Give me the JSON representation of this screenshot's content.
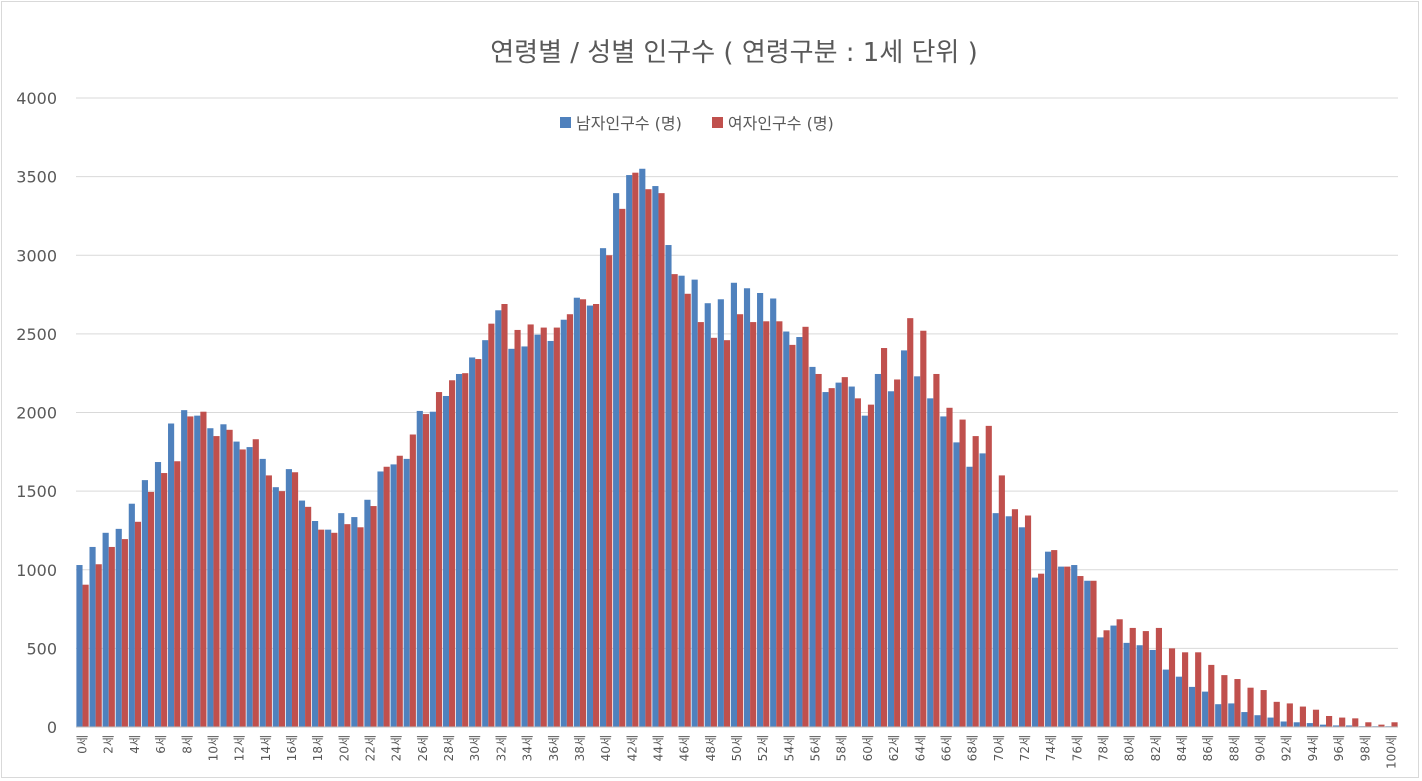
{
  "chart_data": {
    "type": "bar",
    "title": "연령별  / 성별 인구수 ( 연령구분 : 1세 단위 )",
    "xlabel": "",
    "ylabel": "",
    "ylim": [
      0,
      4000
    ],
    "yticks": [
      0,
      500,
      1000,
      1500,
      2000,
      2500,
      3000,
      3500,
      4000
    ],
    "grid": true,
    "legend_position": "top-center",
    "categories": [
      "0세",
      "1세",
      "2세",
      "3세",
      "4세",
      "5세",
      "6세",
      "7세",
      "8세",
      "9세",
      "10세",
      "11세",
      "12세",
      "13세",
      "14세",
      "15세",
      "16세",
      "17세",
      "18세",
      "19세",
      "20세",
      "21세",
      "22세",
      "23세",
      "24세",
      "25세",
      "26세",
      "27세",
      "28세",
      "29세",
      "30세",
      "31세",
      "32세",
      "33세",
      "34세",
      "35세",
      "36세",
      "37세",
      "38세",
      "39세",
      "40세",
      "41세",
      "42세",
      "43세",
      "44세",
      "45세",
      "46세",
      "47세",
      "48세",
      "49세",
      "50세",
      "51세",
      "52세",
      "53세",
      "54세",
      "55세",
      "56세",
      "57세",
      "58세",
      "59세",
      "60세",
      "61세",
      "62세",
      "63세",
      "64세",
      "65세",
      "66세",
      "67세",
      "68세",
      "69세",
      "70세",
      "71세",
      "72세",
      "73세",
      "74세",
      "75세",
      "76세",
      "77세",
      "78세",
      "79세",
      "80세",
      "81세",
      "82세",
      "83세",
      "84세",
      "85세",
      "86세",
      "87세",
      "88세",
      "89세",
      "90세",
      "91세",
      "92세",
      "93세",
      "94세",
      "95세",
      "96세",
      "97세",
      "98세",
      "99세",
      "100세"
    ],
    "xtick_labels": [
      "0세",
      "",
      "2세",
      "",
      "4세",
      "",
      "6세",
      "",
      "8세",
      "",
      "10세",
      "",
      "12세",
      "",
      "14세",
      "",
      "16세",
      "",
      "18세",
      "",
      "20세",
      "",
      "22세",
      "",
      "24세",
      "",
      "26세",
      "",
      "28세",
      "",
      "30세",
      "",
      "32세",
      "",
      "34세",
      "",
      "36세",
      "",
      "38세",
      "",
      "40세",
      "",
      "42세",
      "",
      "44세",
      "",
      "46세",
      "",
      "48세",
      "",
      "50세",
      "",
      "52세",
      "",
      "54세",
      "",
      "56세",
      "",
      "58세",
      "",
      "60세",
      "",
      "62세",
      "",
      "64세",
      "",
      "66세",
      "",
      "68세",
      "",
      "70세",
      "",
      "72세",
      "",
      "74세",
      "",
      "76세",
      "",
      "78세",
      "",
      "80세",
      "",
      "82세",
      "",
      "84세",
      "",
      "86세",
      "",
      "88세",
      "",
      "90세",
      "",
      "92세",
      "",
      "94세",
      "",
      "96세",
      "",
      "98세",
      "",
      "100세"
    ],
    "series": [
      {
        "name": "남자인구수 (명)",
        "color": "#4f81bd",
        "values": [
          1030,
          1145,
          1235,
          1260,
          1420,
          1570,
          1685,
          1930,
          2015,
          1980,
          1900,
          1925,
          1815,
          1780,
          1705,
          1525,
          1640,
          1440,
          1310,
          1255,
          1360,
          1335,
          1445,
          1625,
          1670,
          1705,
          2010,
          2005,
          2105,
          2245,
          2350,
          2460,
          2650,
          2405,
          2420,
          2495,
          2455,
          2590,
          2730,
          2680,
          3045,
          3395,
          3510,
          3550,
          3440,
          3065,
          2870,
          2845,
          2695,
          2720,
          2825,
          2790,
          2760,
          2725,
          2515,
          2480,
          2290,
          2130,
          2190,
          2165,
          1980,
          2245,
          2135,
          2395,
          2230,
          2090,
          1975,
          1810,
          1655,
          1740,
          1360,
          1340,
          1270,
          950,
          1115,
          1020,
          1030,
          930,
          570,
          645,
          535,
          520,
          490,
          365,
          320,
          255,
          225,
          145,
          150,
          95,
          75,
          60,
          35,
          30,
          25,
          15,
          10,
          10,
          5,
          5,
          5
        ]
      },
      {
        "name": "여자인구수 (명)",
        "color": "#c0504d",
        "values": [
          905,
          1035,
          1145,
          1195,
          1305,
          1495,
          1615,
          1690,
          1975,
          2005,
          1850,
          1890,
          1765,
          1830,
          1600,
          1500,
          1620,
          1400,
          1255,
          1235,
          1290,
          1270,
          1405,
          1655,
          1725,
          1860,
          1990,
          2130,
          2205,
          2250,
          2340,
          2565,
          2690,
          2525,
          2560,
          2540,
          2540,
          2625,
          2720,
          2690,
          3000,
          3295,
          3525,
          3420,
          3395,
          2880,
          2755,
          2575,
          2475,
          2460,
          2625,
          2575,
          2580,
          2580,
          2430,
          2545,
          2245,
          2155,
          2225,
          2090,
          2050,
          2410,
          2210,
          2600,
          2520,
          2245,
          2030,
          1955,
          1850,
          1915,
          1600,
          1385,
          1345,
          975,
          1125,
          1020,
          960,
          930,
          615,
          685,
          630,
          610,
          630,
          500,
          475,
          475,
          395,
          330,
          305,
          250,
          235,
          160,
          150,
          130,
          110,
          70,
          60,
          55,
          30,
          15,
          30
        ]
      }
    ]
  }
}
